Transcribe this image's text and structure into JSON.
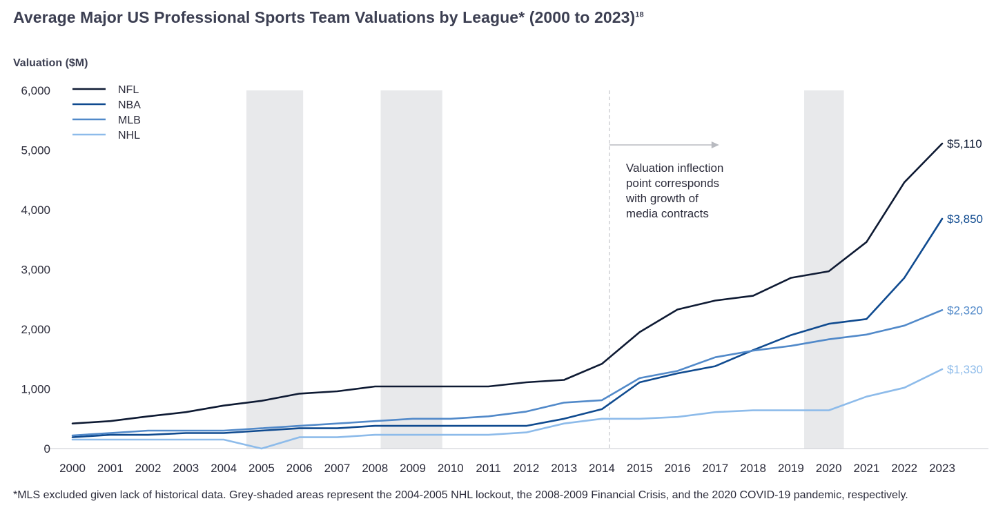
{
  "title": "Average Major US Professional Sports Team Valuations by League* (2000 to 2023)",
  "title_sup": "18",
  "footnote": "*MLS excluded given lack of historical data. Grey-shaded areas represent the 2004-2005 NHL lockout, the 2008-2009 Financial Crisis, and the 2020 COVID-19 pandemic, respectively.",
  "chart_data": {
    "type": "line",
    "ylabel": "Valuation ($M)",
    "xlabel": "",
    "ylim": [
      0,
      6000
    ],
    "yticks": [
      0,
      1000,
      2000,
      3000,
      4000,
      5000,
      6000
    ],
    "ytick_labels": [
      "0",
      "1,000",
      "2,000",
      "3,000",
      "4,000",
      "5,000",
      "6,000"
    ],
    "x": [
      "2000",
      "2001",
      "2002",
      "2003",
      "2004",
      "2005",
      "2006",
      "2007",
      "2008",
      "2009",
      "2010",
      "2011",
      "2012",
      "2013",
      "2014",
      "2015",
      "2016",
      "2017",
      "2018",
      "2019",
      "2020",
      "2021",
      "2022",
      "2023"
    ],
    "legend_position": "top-left",
    "grid": false,
    "series": [
      {
        "name": "NFL",
        "color": "#0e1a33",
        "values": [
          420,
          460,
          540,
          610,
          720,
          800,
          920,
          960,
          1040,
          1040,
          1040,
          1040,
          1110,
          1150,
          1420,
          1950,
          2330,
          2480,
          2560,
          2860,
          2970,
          3460,
          4460,
          5110
        ],
        "end_label": "$5,110"
      },
      {
        "name": "NBA",
        "color": "#0f4a8f",
        "values": [
          190,
          230,
          230,
          260,
          260,
          300,
          340,
          340,
          380,
          380,
          380,
          380,
          380,
          500,
          660,
          1110,
          1260,
          1380,
          1650,
          1900,
          2090,
          2170,
          2860,
          3850
        ],
        "end_label": "$3,850"
      },
      {
        "name": "MLB",
        "color": "#5189c9",
        "values": [
          220,
          260,
          300,
          300,
          300,
          340,
          380,
          420,
          460,
          500,
          500,
          540,
          620,
          770,
          810,
          1180,
          1300,
          1530,
          1640,
          1720,
          1830,
          1910,
          2060,
          2320
        ],
        "end_label": "$2,320"
      },
      {
        "name": "NHL",
        "color": "#8dbbea",
        "values": [
          150,
          150,
          150,
          150,
          150,
          0,
          190,
          190,
          230,
          230,
          230,
          230,
          270,
          420,
          500,
          500,
          530,
          610,
          640,
          640,
          640,
          870,
          1020,
          1330
        ],
        "end_label": "$1,330"
      }
    ],
    "shaded_periods": [
      {
        "from": 2004.6,
        "to": 2006.1
      },
      {
        "from": 2008.15,
        "to": 2009.78
      },
      {
        "from": 2019.35,
        "to": 2020.4
      }
    ],
    "annotation": {
      "at_year": 2014.2,
      "arrow_to_year": 2017.1,
      "text": [
        "Valuation inflection",
        "point corresponds",
        "with growth of",
        "media contracts"
      ]
    },
    "shade_color": "#e8e9eb"
  }
}
